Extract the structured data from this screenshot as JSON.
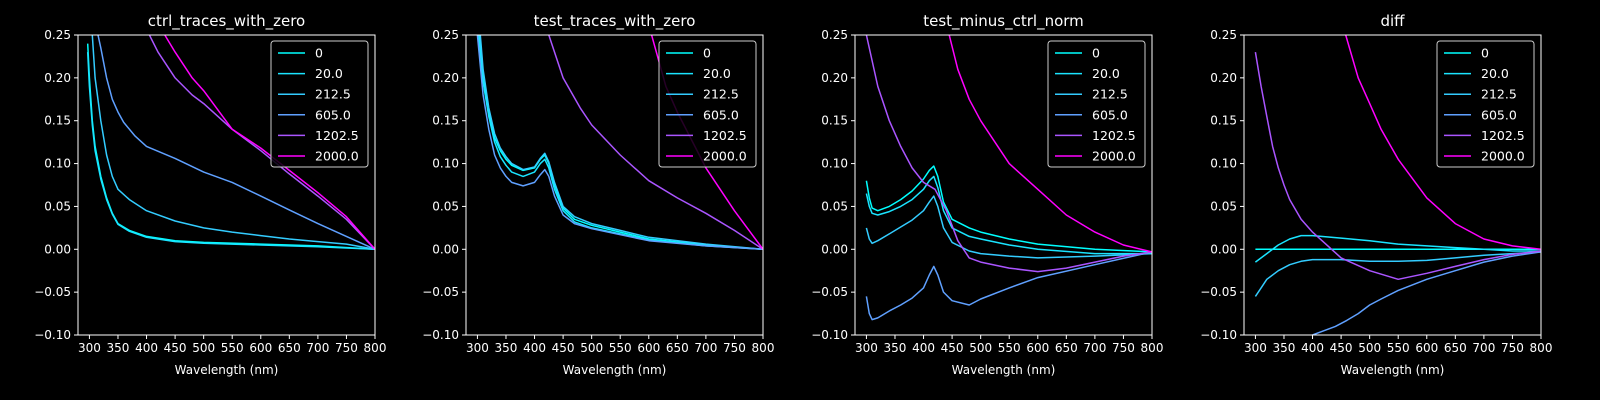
{
  "colors": {
    "background": "#000000",
    "axis": "#ffffff",
    "series": [
      "#00ffff",
      "#1ae4ff",
      "#33ccff",
      "#5fa0ff",
      "#aa55ff",
      "#ff00ff"
    ]
  },
  "chart_data": [
    {
      "type": "line",
      "title": "ctrl_traces_with_zero",
      "xlabel": "Wavelength (nm)",
      "ylabel": "",
      "xlim": [
        280,
        800
      ],
      "ylim": [
        -0.1,
        0.25
      ],
      "xticks": [
        "300",
        "350",
        "400",
        "450",
        "500",
        "550",
        "600",
        "650",
        "700",
        "750",
        "800"
      ],
      "yticks": [
        "−0.10",
        "−0.05",
        "0.00",
        "0.05",
        "0.10",
        "0.15",
        "0.20",
        "0.25"
      ],
      "grid": false,
      "legend": "top-right",
      "series": [
        {
          "name": "0",
          "x": [
            297,
            300,
            305,
            310,
            320,
            330,
            340,
            350,
            370,
            400,
            450,
            500,
            600,
            700,
            800
          ],
          "y": [
            0.24,
            0.2,
            0.15,
            0.12,
            0.085,
            0.06,
            0.042,
            0.03,
            0.022,
            0.015,
            0.01,
            0.008,
            0.006,
            0.004,
            0.0
          ]
        },
        {
          "name": "20.0",
          "x": [
            297,
            300,
            305,
            310,
            320,
            330,
            340,
            350,
            370,
            400,
            450,
            500,
            600,
            700,
            800
          ],
          "y": [
            0.23,
            0.19,
            0.145,
            0.115,
            0.082,
            0.058,
            0.041,
            0.029,
            0.021,
            0.014,
            0.009,
            0.007,
            0.005,
            0.003,
            0.0
          ]
        },
        {
          "name": "212.5",
          "x": [
            305,
            310,
            320,
            330,
            340,
            350,
            370,
            400,
            450,
            500,
            550,
            600,
            650,
            700,
            750,
            800
          ],
          "y": [
            0.25,
            0.2,
            0.15,
            0.11,
            0.085,
            0.07,
            0.058,
            0.045,
            0.033,
            0.025,
            0.02,
            0.016,
            0.012,
            0.009,
            0.006,
            0.0
          ]
        },
        {
          "name": "605.0",
          "x": [
            315,
            320,
            330,
            340,
            350,
            360,
            380,
            400,
            450,
            500,
            550,
            600,
            650,
            700,
            750,
            800
          ],
          "y": [
            0.25,
            0.235,
            0.2,
            0.175,
            0.16,
            0.148,
            0.132,
            0.12,
            0.106,
            0.09,
            0.078,
            0.062,
            0.046,
            0.03,
            0.015,
            0.0
          ]
        },
        {
          "name": "1202.5",
          "x": [
            405,
            420,
            450,
            480,
            500,
            550,
            600,
            650,
            700,
            750,
            800
          ],
          "y": [
            0.25,
            0.23,
            0.2,
            0.18,
            0.17,
            0.14,
            0.115,
            0.088,
            0.062,
            0.035,
            0.0
          ]
        },
        {
          "name": "2000.0",
          "x": [
            432,
            450,
            480,
            500,
            550,
            600,
            650,
            700,
            750,
            800
          ],
          "y": [
            0.25,
            0.23,
            0.2,
            0.185,
            0.14,
            0.118,
            0.092,
            0.066,
            0.038,
            0.0
          ]
        }
      ]
    },
    {
      "type": "line",
      "title": "test_traces_with_zero",
      "xlabel": "Wavelength (nm)",
      "ylabel": "",
      "xlim": [
        280,
        800
      ],
      "ylim": [
        -0.1,
        0.25
      ],
      "xticks": [
        "300",
        "350",
        "400",
        "450",
        "500",
        "550",
        "600",
        "650",
        "700",
        "750",
        "800"
      ],
      "yticks": [
        "−0.10",
        "−0.05",
        "0.00",
        "0.05",
        "0.10",
        "0.15",
        "0.20",
        "0.25"
      ],
      "grid": false,
      "legend": "top-right",
      "series": [
        {
          "name": "0",
          "x": [
            303,
            310,
            320,
            330,
            340,
            350,
            360,
            380,
            400,
            410,
            418,
            425,
            435,
            450,
            470,
            500,
            550,
            600,
            700,
            800
          ],
          "y": [
            0.25,
            0.2,
            0.16,
            0.13,
            0.115,
            0.105,
            0.098,
            0.092,
            0.095,
            0.105,
            0.11,
            0.1,
            0.075,
            0.048,
            0.035,
            0.028,
            0.02,
            0.012,
            0.005,
            0.0
          ]
        },
        {
          "name": "20.0",
          "x": [
            302,
            310,
            320,
            330,
            340,
            350,
            360,
            380,
            400,
            410,
            418,
            425,
            435,
            450,
            470,
            500,
            550,
            600,
            700,
            800
          ],
          "y": [
            0.25,
            0.195,
            0.155,
            0.125,
            0.108,
            0.098,
            0.09,
            0.085,
            0.09,
            0.1,
            0.105,
            0.095,
            0.07,
            0.045,
            0.032,
            0.025,
            0.018,
            0.011,
            0.004,
            0.0
          ]
        },
        {
          "name": "212.5",
          "x": [
            305,
            310,
            320,
            330,
            340,
            350,
            360,
            380,
            400,
            410,
            418,
            425,
            435,
            450,
            470,
            500,
            550,
            600,
            700,
            800
          ],
          "y": [
            0.25,
            0.21,
            0.165,
            0.135,
            0.118,
            0.108,
            0.1,
            0.093,
            0.096,
            0.106,
            0.112,
            0.102,
            0.078,
            0.05,
            0.038,
            0.03,
            0.022,
            0.014,
            0.006,
            0.0
          ]
        },
        {
          "name": "605.0",
          "x": [
            300,
            310,
            320,
            330,
            340,
            350,
            360,
            380,
            400,
            410,
            418,
            425,
            435,
            450,
            470,
            500,
            550,
            600,
            700,
            800
          ],
          "y": [
            0.25,
            0.18,
            0.14,
            0.11,
            0.095,
            0.085,
            0.078,
            0.074,
            0.078,
            0.087,
            0.093,
            0.085,
            0.062,
            0.04,
            0.03,
            0.024,
            0.017,
            0.01,
            0.004,
            0.0
          ]
        },
        {
          "name": "1202.5",
          "x": [
            425,
            450,
            480,
            500,
            550,
            600,
            650,
            700,
            750,
            800
          ],
          "y": [
            0.25,
            0.2,
            0.165,
            0.145,
            0.11,
            0.08,
            0.06,
            0.042,
            0.022,
            0.0
          ]
        },
        {
          "name": "2000.0",
          "x": [
            605,
            630,
            650,
            700,
            750,
            800
          ],
          "y": [
            0.25,
            0.19,
            0.16,
            0.095,
            0.045,
            0.0
          ]
        }
      ]
    },
    {
      "type": "line",
      "title": "test_minus_ctrl_norm",
      "xlabel": "Wavelength (nm)",
      "ylabel": "",
      "xlim": [
        280,
        800
      ],
      "ylim": [
        -0.1,
        0.25
      ],
      "xticks": [
        "300",
        "350",
        "400",
        "450",
        "500",
        "550",
        "600",
        "650",
        "700",
        "750",
        "800"
      ],
      "yticks": [
        "−0.10",
        "−0.05",
        "0.00",
        "0.05",
        "0.10",
        "0.15",
        "0.20",
        "0.25"
      ],
      "grid": false,
      "legend": "top-right",
      "series": [
        {
          "name": "0",
          "x": [
            300,
            305,
            310,
            320,
            340,
            360,
            380,
            400,
            410,
            418,
            425,
            435,
            450,
            480,
            500,
            550,
            600,
            700,
            800
          ],
          "y": [
            0.08,
            0.06,
            0.048,
            0.045,
            0.05,
            0.058,
            0.068,
            0.082,
            0.092,
            0.097,
            0.085,
            0.055,
            0.035,
            0.025,
            0.02,
            0.012,
            0.006,
            0.0,
            -0.003
          ]
        },
        {
          "name": "20.0",
          "x": [
            300,
            305,
            310,
            320,
            340,
            360,
            380,
            400,
            410,
            418,
            425,
            435,
            450,
            480,
            500,
            550,
            600,
            700,
            800
          ],
          "y": [
            0.065,
            0.05,
            0.042,
            0.04,
            0.044,
            0.05,
            0.058,
            0.07,
            0.08,
            0.085,
            0.072,
            0.045,
            0.025,
            0.015,
            0.012,
            0.005,
            0.0,
            -0.005,
            -0.005
          ]
        },
        {
          "name": "212.5",
          "x": [
            300,
            305,
            310,
            320,
            340,
            360,
            380,
            400,
            410,
            418,
            425,
            435,
            450,
            480,
            500,
            550,
            600,
            700,
            800
          ],
          "y": [
            0.025,
            0.012,
            0.007,
            0.01,
            0.018,
            0.026,
            0.034,
            0.045,
            0.055,
            0.062,
            0.05,
            0.025,
            0.008,
            -0.002,
            -0.005,
            -0.008,
            -0.01,
            -0.008,
            -0.005
          ]
        },
        {
          "name": "605.0",
          "x": [
            300,
            305,
            310,
            320,
            340,
            360,
            380,
            400,
            410,
            418,
            425,
            435,
            450,
            480,
            500,
            550,
            600,
            700,
            800
          ],
          "y": [
            -0.055,
            -0.075,
            -0.082,
            -0.08,
            -0.072,
            -0.065,
            -0.057,
            -0.045,
            -0.03,
            -0.02,
            -0.03,
            -0.05,
            -0.06,
            -0.065,
            -0.058,
            -0.045,
            -0.033,
            -0.018,
            -0.003
          ]
        },
        {
          "name": "1202.5",
          "x": [
            300,
            320,
            340,
            360,
            380,
            400,
            420,
            440,
            460,
            480,
            500,
            550,
            600,
            650,
            700,
            750,
            800
          ],
          "y": [
            0.25,
            0.19,
            0.15,
            0.12,
            0.095,
            0.078,
            0.07,
            0.045,
            0.01,
            -0.01,
            -0.015,
            -0.022,
            -0.026,
            -0.022,
            -0.015,
            -0.008,
            -0.003
          ]
        },
        {
          "name": "2000.0",
          "x": [
            445,
            460,
            480,
            500,
            550,
            600,
            650,
            700,
            750,
            800
          ],
          "y": [
            0.25,
            0.21,
            0.175,
            0.15,
            0.1,
            0.07,
            0.04,
            0.02,
            0.005,
            -0.003
          ]
        }
      ]
    },
    {
      "type": "line",
      "title": "diff",
      "xlabel": "Wavelength (nm)",
      "ylabel": "",
      "xlim": [
        280,
        800
      ],
      "ylim": [
        -0.1,
        0.25
      ],
      "xticks": [
        "300",
        "350",
        "400",
        "450",
        "500",
        "550",
        "600",
        "650",
        "700",
        "750",
        "800"
      ],
      "yticks": [
        "−0.10",
        "−0.05",
        "0.00",
        "0.05",
        "0.10",
        "0.15",
        "0.20",
        "0.25"
      ],
      "grid": false,
      "legend": "top-right",
      "series": [
        {
          "name": "0",
          "x": [
            300,
            800
          ],
          "y": [
            0.0,
            0.0
          ]
        },
        {
          "name": "20.0",
          "x": [
            300,
            320,
            340,
            360,
            380,
            400,
            450,
            500,
            550,
            600,
            650,
            700,
            750,
            800
          ],
          "y": [
            -0.015,
            -0.005,
            0.005,
            0.012,
            0.016,
            0.016,
            0.013,
            0.01,
            0.006,
            0.004,
            0.002,
            0.0,
            -0.002,
            -0.002
          ]
        },
        {
          "name": "212.5",
          "x": [
            300,
            310,
            320,
            340,
            360,
            380,
            400,
            450,
            500,
            550,
            600,
            650,
            700,
            750,
            800
          ],
          "y": [
            -0.055,
            -0.045,
            -0.035,
            -0.025,
            -0.018,
            -0.014,
            -0.012,
            -0.012,
            -0.014,
            -0.014,
            -0.013,
            -0.01,
            -0.007,
            -0.005,
            -0.003
          ]
        },
        {
          "name": "605.0",
          "x": [
            400,
            420,
            440,
            460,
            480,
            500,
            520,
            550,
            600,
            650,
            700,
            750,
            800
          ],
          "y": [
            -0.1,
            -0.095,
            -0.09,
            -0.083,
            -0.075,
            -0.065,
            -0.058,
            -0.048,
            -0.035,
            -0.025,
            -0.015,
            -0.008,
            -0.003
          ]
        },
        {
          "name": "1202.5",
          "x": [
            300,
            310,
            320,
            330,
            340,
            350,
            360,
            380,
            400,
            420,
            450,
            500,
            550,
            600,
            650,
            700,
            750,
            800
          ],
          "y": [
            0.23,
            0.19,
            0.155,
            0.12,
            0.095,
            0.075,
            0.058,
            0.035,
            0.02,
            0.008,
            -0.01,
            -0.025,
            -0.035,
            -0.028,
            -0.02,
            -0.012,
            -0.006,
            -0.002
          ]
        },
        {
          "name": "2000.0",
          "x": [
            458,
            480,
            500,
            520,
            550,
            600,
            650,
            700,
            750,
            800
          ],
          "y": [
            0.25,
            0.2,
            0.17,
            0.14,
            0.105,
            0.06,
            0.03,
            0.012,
            0.004,
            0.0
          ]
        }
      ]
    }
  ]
}
